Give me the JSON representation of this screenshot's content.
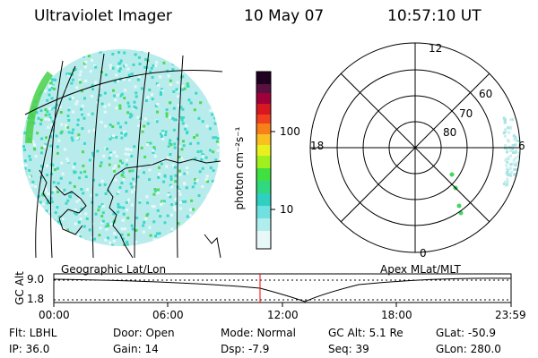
{
  "header": {
    "instrument": "Ultraviolet Imager",
    "date": "10 May 07",
    "time": "10:57:10 UT"
  },
  "colorbar": {
    "unit_label": "photon cm⁻²s⁻¹",
    "ticks": [
      "100",
      "10"
    ]
  },
  "polar": {
    "mlt_labels": [
      "12",
      "18",
      "6",
      "0"
    ],
    "lat_labels": [
      "60",
      "70",
      "80"
    ]
  },
  "left_panel_label": "Geographic Lat/Lon",
  "right_panel_label": "Apex MLat/MLT",
  "altitude_plot": {
    "axis_label": "GC Alt",
    "y_ticks": [
      "9.0",
      "1.8"
    ],
    "x_ticks": [
      "00:00",
      "06:00",
      "12:00",
      "18:00",
      "23:59"
    ],
    "marker_time": "10:57"
  },
  "info": {
    "flt": "Flt: LBHL",
    "ip": "IP: 36.0",
    "door": "Door: Open",
    "gain": "Gain: 14",
    "mode": "Mode: Normal",
    "dsp": "Dsp:   -7.9",
    "gc_alt": "GC Alt: 5.1 Re",
    "seq": "Seq: 39",
    "glat": "GLat:  -50.9",
    "glon": "GLon: 280.0"
  },
  "colors": {
    "earth_fill": "#b8ecec",
    "speckle_cyan": "#3cd8c8",
    "speckle_green": "#50d850",
    "marker_red": "#ff0000"
  }
}
